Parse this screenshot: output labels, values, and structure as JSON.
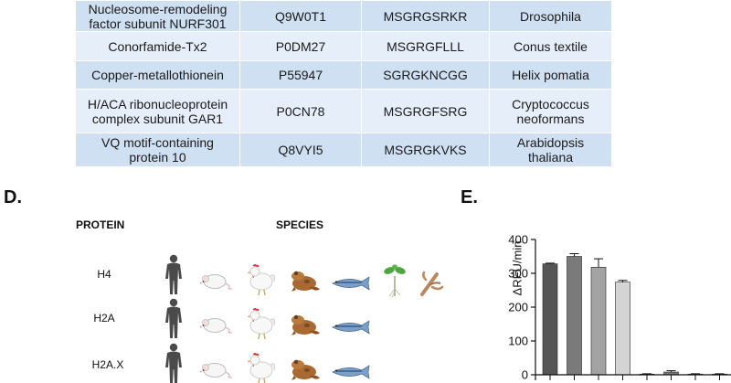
{
  "table": {
    "rows": [
      [
        "Nucleosome-remodeling factor subunit NURF301",
        "Q9W0T1",
        "MSGRGSRKR",
        "Drosophila"
      ],
      [
        "Conorfamide-Tx2",
        "P0DM27",
        "MSGRGFLLL",
        "Conus textile"
      ],
      [
        "Copper-metallothionein",
        "P55947",
        "SGRGKNCGG",
        "Helix pomatia"
      ],
      [
        "H/ACA ribonucleoprotein complex subunit GAR1",
        "P0CN78",
        "MSGRGFSRG",
        "Cryptococcus neoformans"
      ],
      [
        "VQ motif-containing protein 10",
        "Q8VYI5",
        "MSGRGKVKS",
        "Arabidopsis thaliana"
      ]
    ],
    "row_line1": [
      "Nucleosome-remodeling",
      "Conorfamide-Tx2",
      "Copper-metallothionein",
      "H/ACA ribonucleoprotein",
      "VQ motif-containing"
    ],
    "row_line2": [
      "factor subunit NURF301",
      "",
      "",
      "complex subunit GAR1",
      "protein 10"
    ],
    "species_line1": [
      "Drosophila",
      "Conus textile",
      "Helix pomatia",
      "Cryptococcus",
      "Arabidopsis"
    ],
    "species_line2": [
      "",
      "",
      "",
      "neoformans",
      "thaliana"
    ]
  },
  "panel_d": {
    "label": "D.",
    "protein_header": "PROTEIN",
    "species_header": "SPECIES",
    "proteins": [
      "H4",
      "H2A",
      "H2A.X"
    ],
    "species_icons": [
      "human-icon",
      "mouse-icon",
      "chicken-icon",
      "frog-icon",
      "fish-icon",
      "plant-icon",
      "mushroom-icon"
    ]
  },
  "panel_e": {
    "label": "E."
  },
  "chart_data": {
    "type": "bar",
    "ylabel": "ΔRFU/min",
    "ylim": [
      0,
      400
    ],
    "yticks": [
      "0",
      "100",
      "200",
      "300",
      "400"
    ],
    "values": [
      328,
      350,
      318,
      274,
      2,
      8,
      2,
      2
    ],
    "errors": [
      2,
      8,
      25,
      5,
      1,
      4,
      1,
      1
    ],
    "colors": [
      "#555555",
      "#7a7a7a",
      "#a3a3a3",
      "#d4d4d4",
      "#555555",
      "#7a7a7a",
      "#a3a3a3",
      "#d4d4d4"
    ]
  }
}
